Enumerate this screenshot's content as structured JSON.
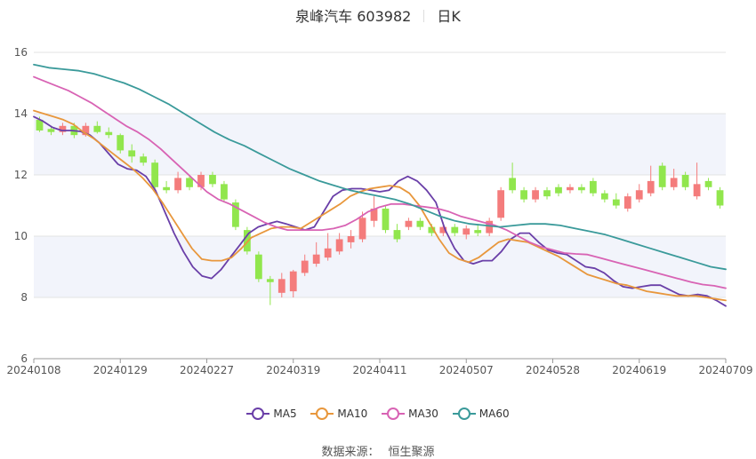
{
  "header": {
    "title": "泉峰汽车 603982",
    "period": "日K"
  },
  "source": {
    "label": "数据来源：",
    "provider": "恒生聚源"
  },
  "colors": {
    "up": "#f47c7c",
    "down": "#91e64d",
    "ma5": "#6a3fa8",
    "ma10": "#e8973c",
    "ma30": "#d863b4",
    "ma60": "#3a9a9a",
    "band": "#f2f4fb",
    "grid": "#e3e3e3",
    "axis": "#999999"
  },
  "chart_data": {
    "type": "candlestick",
    "title": "泉峰汽车 603982",
    "ylim": [
      6,
      16
    ],
    "yticks": [
      6,
      8,
      10,
      12,
      14,
      16
    ],
    "grid": true,
    "legend_position": "bottom",
    "x_tick_labels": [
      "20240108",
      "20240129",
      "20240227",
      "20240319",
      "20240411",
      "20240507",
      "20240528",
      "20240619",
      "20240709"
    ],
    "series": [
      {
        "name": "MA5",
        "values": [
          13.9,
          13.75,
          13.55,
          13.45,
          13.45,
          13.42,
          13.3,
          13.05,
          12.7,
          12.35,
          12.2,
          12.15,
          11.95,
          11.5,
          10.8,
          10.1,
          9.5,
          9.0,
          8.7,
          8.62,
          8.9,
          9.3,
          9.7,
          10.1,
          10.3,
          10.4,
          10.48,
          10.4,
          10.3,
          10.2,
          10.3,
          10.8,
          11.3,
          11.5,
          11.55,
          11.55,
          11.5,
          11.45,
          11.5,
          11.8,
          11.95,
          11.8,
          11.5,
          11.1,
          10.2,
          9.6,
          9.2,
          9.1,
          9.2,
          9.2,
          9.5,
          9.9,
          10.1,
          10.1,
          9.8,
          9.55,
          9.45,
          9.4,
          9.2,
          9.0,
          8.95,
          8.8,
          8.55,
          8.35,
          8.3,
          8.35,
          8.4,
          8.4,
          8.25,
          8.1,
          8.05,
          8.1,
          8.05,
          7.9,
          7.72
        ]
      },
      {
        "name": "MA10",
        "values": [
          14.1,
          14.0,
          13.9,
          13.8,
          13.65,
          13.4,
          13.2,
          12.95,
          12.7,
          12.45,
          12.2,
          11.9,
          11.55,
          11.1,
          10.6,
          10.1,
          9.6,
          9.25,
          9.2,
          9.2,
          9.3,
          9.6,
          9.95,
          10.1,
          10.25,
          10.3,
          10.3,
          10.25,
          10.45,
          10.65,
          10.85,
          11.05,
          11.3,
          11.45,
          11.55,
          11.6,
          11.65,
          11.6,
          11.4,
          11.0,
          10.45,
          9.9,
          9.45,
          9.25,
          9.15,
          9.3,
          9.55,
          9.8,
          9.9,
          9.85,
          9.8,
          9.65,
          9.5,
          9.35,
          9.15,
          8.95,
          8.75,
          8.65,
          8.55,
          8.45,
          8.4,
          8.3,
          8.2,
          8.15,
          8.1,
          8.05,
          8.05,
          8.05,
          8.0,
          7.95,
          7.9
        ]
      },
      {
        "name": "MA30",
        "values": [
          15.2,
          15.05,
          14.9,
          14.75,
          14.55,
          14.35,
          14.1,
          13.85,
          13.6,
          13.4,
          13.15,
          12.85,
          12.5,
          12.15,
          11.8,
          11.45,
          11.2,
          11.05,
          10.85,
          10.65,
          10.45,
          10.3,
          10.2,
          10.2,
          10.2,
          10.2,
          10.25,
          10.35,
          10.55,
          10.8,
          10.95,
          11.05,
          11.05,
          11.0,
          10.95,
          10.9,
          10.8,
          10.65,
          10.55,
          10.45,
          10.35,
          10.2,
          10.0,
          9.8,
          9.65,
          9.55,
          9.45,
          9.42,
          9.4,
          9.3,
          9.2,
          9.1,
          9.0,
          8.9,
          8.8,
          8.7,
          8.6,
          8.5,
          8.42,
          8.38,
          8.3
        ]
      },
      {
        "name": "MA60",
        "values": [
          15.6,
          15.5,
          15.45,
          15.4,
          15.3,
          15.15,
          15.0,
          14.8,
          14.55,
          14.3,
          14.0,
          13.7,
          13.4,
          13.15,
          12.95,
          12.7,
          12.45,
          12.2,
          12.0,
          11.8,
          11.65,
          11.5,
          11.4,
          11.3,
          11.2,
          11.05,
          10.85,
          10.65,
          10.5,
          10.4,
          10.35,
          10.3,
          10.35,
          10.4,
          10.4,
          10.35,
          10.25,
          10.15,
          10.05,
          9.9,
          9.75,
          9.6,
          9.45,
          9.3,
          9.15,
          9.0,
          8.92
        ]
      }
    ],
    "candles": [
      {
        "o": 13.8,
        "c": 13.45,
        "h": 13.9,
        "l": 13.4
      },
      {
        "o": 13.5,
        "c": 13.4,
        "h": 13.6,
        "l": 13.3
      },
      {
        "o": 13.4,
        "c": 13.6,
        "h": 13.7,
        "l": 13.3
      },
      {
        "o": 13.6,
        "c": 13.3,
        "h": 13.7,
        "l": 13.2
      },
      {
        "o": 13.3,
        "c": 13.6,
        "h": 13.7,
        "l": 13.25
      },
      {
        "o": 13.6,
        "c": 13.4,
        "h": 13.75,
        "l": 13.35
      },
      {
        "o": 13.4,
        "c": 13.3,
        "h": 13.55,
        "l": 13.2
      },
      {
        "o": 13.3,
        "c": 12.8,
        "h": 13.35,
        "l": 12.7
      },
      {
        "o": 12.8,
        "c": 12.6,
        "h": 13.0,
        "l": 12.4
      },
      {
        "o": 12.6,
        "c": 12.4,
        "h": 12.7,
        "l": 12.3
      },
      {
        "o": 12.4,
        "c": 11.6,
        "h": 12.5,
        "l": 11.5
      },
      {
        "o": 11.6,
        "c": 11.5,
        "h": 11.8,
        "l": 11.4
      },
      {
        "o": 11.5,
        "c": 11.9,
        "h": 12.1,
        "l": 11.4
      },
      {
        "o": 11.9,
        "c": 11.6,
        "h": 12.0,
        "l": 11.5
      },
      {
        "o": 11.6,
        "c": 12.0,
        "h": 12.1,
        "l": 11.5
      },
      {
        "o": 12.0,
        "c": 11.7,
        "h": 12.1,
        "l": 11.6
      },
      {
        "o": 11.7,
        "c": 11.2,
        "h": 11.8,
        "l": 11.1
      },
      {
        "o": 11.1,
        "c": 10.3,
        "h": 11.2,
        "l": 10.2
      },
      {
        "o": 10.2,
        "c": 9.5,
        "h": 10.3,
        "l": 9.4
      },
      {
        "o": 9.4,
        "c": 8.6,
        "h": 9.5,
        "l": 8.5
      },
      {
        "o": 8.6,
        "c": 8.5,
        "h": 8.7,
        "l": 7.75
      },
      {
        "o": 8.15,
        "c": 8.6,
        "h": 8.8,
        "l": 8.0
      },
      {
        "o": 8.2,
        "c": 8.85,
        "h": 8.9,
        "l": 8.0
      },
      {
        "o": 8.8,
        "c": 9.2,
        "h": 9.4,
        "l": 8.7
      },
      {
        "o": 9.1,
        "c": 9.4,
        "h": 9.8,
        "l": 9.0
      },
      {
        "o": 9.3,
        "c": 9.6,
        "h": 10.1,
        "l": 9.2
      },
      {
        "o": 9.5,
        "c": 9.9,
        "h": 10.1,
        "l": 9.4
      },
      {
        "o": 9.8,
        "c": 10.0,
        "h": 10.2,
        "l": 9.6
      },
      {
        "o": 9.9,
        "c": 10.6,
        "h": 10.8,
        "l": 9.8
      },
      {
        "o": 10.5,
        "c": 10.9,
        "h": 11.3,
        "l": 10.3
      },
      {
        "o": 10.9,
        "c": 10.2,
        "h": 11.0,
        "l": 10.1
      },
      {
        "o": 10.2,
        "c": 9.9,
        "h": 10.4,
        "l": 9.8
      },
      {
        "o": 10.3,
        "c": 10.5,
        "h": 10.6,
        "l": 10.2
      },
      {
        "o": 10.5,
        "c": 10.3,
        "h": 10.6,
        "l": 10.2
      },
      {
        "o": 10.3,
        "c": 10.1,
        "h": 10.4,
        "l": 10.0
      },
      {
        "o": 10.1,
        "c": 10.3,
        "h": 10.45,
        "l": 10.0
      },
      {
        "o": 10.3,
        "c": 10.1,
        "h": 10.4,
        "l": 10.0
      },
      {
        "o": 10.05,
        "c": 10.25,
        "h": 10.35,
        "l": 9.9
      },
      {
        "o": 10.2,
        "c": 10.1,
        "h": 10.4,
        "l": 10.0
      },
      {
        "o": 10.1,
        "c": 10.5,
        "h": 10.6,
        "l": 10.0
      },
      {
        "o": 10.6,
        "c": 11.5,
        "h": 11.6,
        "l": 10.5
      },
      {
        "o": 11.9,
        "c": 11.5,
        "h": 12.4,
        "l": 11.4
      },
      {
        "o": 11.5,
        "c": 11.2,
        "h": 11.6,
        "l": 11.1
      },
      {
        "o": 11.2,
        "c": 11.5,
        "h": 11.6,
        "l": 11.1
      },
      {
        "o": 11.5,
        "c": 11.3,
        "h": 11.6,
        "l": 11.2
      },
      {
        "o": 11.6,
        "c": 11.4,
        "h": 11.7,
        "l": 11.3
      },
      {
        "o": 11.5,
        "c": 11.6,
        "h": 11.7,
        "l": 11.4
      },
      {
        "o": 11.6,
        "c": 11.5,
        "h": 11.7,
        "l": 11.4
      },
      {
        "o": 11.8,
        "c": 11.4,
        "h": 11.9,
        "l": 11.3
      },
      {
        "o": 11.4,
        "c": 11.2,
        "h": 11.5,
        "l": 11.1
      },
      {
        "o": 11.2,
        "c": 11.0,
        "h": 11.4,
        "l": 10.9
      },
      {
        "o": 10.9,
        "c": 11.3,
        "h": 11.4,
        "l": 10.8
      },
      {
        "o": 11.2,
        "c": 11.5,
        "h": 11.7,
        "l": 11.1
      },
      {
        "o": 11.4,
        "c": 11.8,
        "h": 12.3,
        "l": 11.3
      },
      {
        "o": 12.3,
        "c": 11.6,
        "h": 12.4,
        "l": 11.5
      },
      {
        "o": 11.6,
        "c": 11.9,
        "h": 12.2,
        "l": 11.5
      },
      {
        "o": 12.0,
        "c": 11.6,
        "h": 12.1,
        "l": 11.5
      },
      {
        "o": 11.3,
        "c": 11.7,
        "h": 12.4,
        "l": 11.2
      },
      {
        "o": 11.8,
        "c": 11.6,
        "h": 11.9,
        "l": 11.5
      },
      {
        "o": 11.5,
        "c": 11.0,
        "h": 11.6,
        "l": 10.9
      }
    ]
  }
}
